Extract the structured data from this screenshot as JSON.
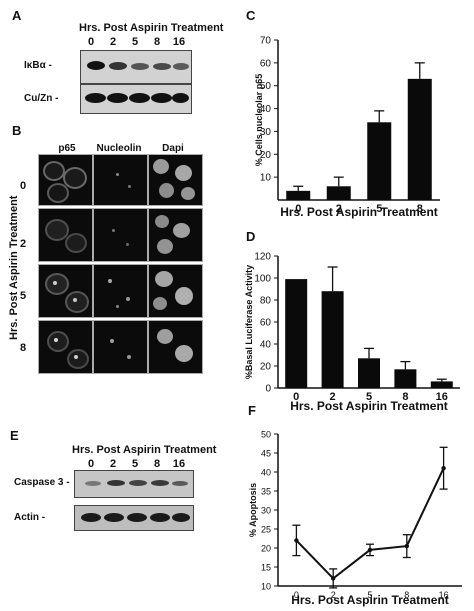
{
  "panels": {
    "A": {
      "letter": "A",
      "title": "Hrs. Post Aspirin Treatment",
      "lanes": [
        "0",
        "2",
        "5",
        "8",
        "16"
      ],
      "rows": [
        "IκBα -",
        "Cu/Zn -"
      ]
    },
    "B": {
      "letter": "B",
      "columns": [
        "p65",
        "Nucleolin",
        "Dapi"
      ],
      "rows": [
        "0",
        "2",
        "5",
        "8"
      ],
      "side_label": "Hrs. Post Aspirin Treatment"
    },
    "C": {
      "letter": "C"
    },
    "D": {
      "letter": "D"
    },
    "E": {
      "letter": "E",
      "title": "Hrs. Post Aspirin Treatment",
      "lanes": [
        "0",
        "2",
        "5",
        "8",
        "16"
      ],
      "rows": [
        "Caspase 3 -",
        "Actin -"
      ]
    },
    "F": {
      "letter": "F"
    }
  },
  "chart_data": [
    {
      "id": "C",
      "type": "bar",
      "categories": [
        "0",
        "2",
        "5",
        "8"
      ],
      "values": [
        4,
        6,
        34,
        53
      ],
      "errors": [
        2,
        4,
        5,
        7
      ],
      "xlabel": "Hrs. Post Aspirin Treatment",
      "ylabel": "% Cells nucleolar p65",
      "ylim": [
        0,
        70
      ],
      "yticks": [
        "10",
        "20",
        "30",
        "40",
        "50",
        "60",
        "70"
      ]
    },
    {
      "id": "D",
      "type": "bar",
      "categories": [
        "0",
        "2",
        "5",
        "8",
        "16"
      ],
      "values": [
        99,
        88,
        27,
        17,
        6
      ],
      "errors": [
        0,
        22,
        9,
        7,
        2
      ],
      "xlabel": "Hrs. Post Aspirin Treatment",
      "ylabel": "%Basal Luciferase Activity",
      "ylim": [
        0,
        120
      ],
      "yticks": [
        "0",
        "20",
        "40",
        "60",
        "80",
        "100",
        "120"
      ]
    },
    {
      "id": "F",
      "type": "line",
      "categories": [
        "0",
        "2",
        "5",
        "8",
        "16"
      ],
      "values": [
        22,
        12,
        19.5,
        20.5,
        41
      ],
      "errors": [
        4,
        2.5,
        1.5,
        3,
        5.5
      ],
      "xlabel": "Hrs. Post Aspirin Treatment",
      "ylabel": "% Apoptosis",
      "ylim": [
        10,
        50
      ],
      "yticks": [
        "10",
        "15",
        "20",
        "25",
        "30",
        "35",
        "40",
        "45",
        "50"
      ]
    }
  ]
}
